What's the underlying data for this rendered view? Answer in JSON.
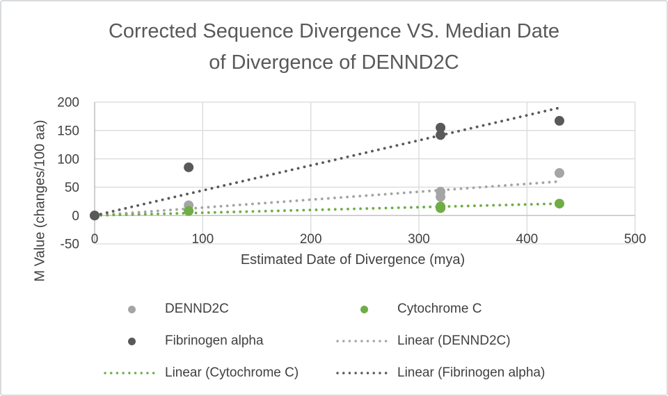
{
  "header": {
    "title_lines": [
      "Corrected Sequence Divergence VS. Median Date",
      "of Divergence of DENND2C"
    ]
  },
  "chart_data": {
    "type": "scatter",
    "title": "Corrected Sequence Divergence VS. Median Date of Divergence of DENND2C",
    "xlabel": "Estimated Date of Divergence (mya)",
    "ylabel": "M Value (changes/100 aa)",
    "xlim": [
      0,
      500
    ],
    "ylim": [
      -50,
      200
    ],
    "x_ticks": [
      0,
      100,
      200,
      300,
      400,
      500
    ],
    "y_ticks": [
      -50,
      0,
      50,
      100,
      150,
      200
    ],
    "grid": true,
    "legend_position": "bottom",
    "series": [
      {
        "name": "DENND2C",
        "marker": "circle",
        "color": "#a5a5a5",
        "points": [
          [
            0,
            0
          ],
          [
            87,
            18
          ],
          [
            320,
            33
          ],
          [
            320,
            42
          ],
          [
            430,
            75
          ]
        ]
      },
      {
        "name": "Cytochrome C",
        "marker": "circle",
        "color": "#70ad47",
        "points": [
          [
            0,
            0
          ],
          [
            87,
            8
          ],
          [
            320,
            13
          ],
          [
            320,
            16
          ],
          [
            430,
            21
          ]
        ]
      },
      {
        "name": "Fibrinogen alpha",
        "marker": "circle",
        "color": "#595959",
        "points": [
          [
            0,
            0
          ],
          [
            87,
            85
          ],
          [
            320,
            142
          ],
          [
            320,
            155
          ],
          [
            430,
            167
          ]
        ]
      }
    ],
    "trendlines": [
      {
        "name": "Linear (DENND2C)",
        "color": "#a5a5a5",
        "start": [
          0,
          0
        ],
        "end": [
          430,
          60
        ]
      },
      {
        "name": "Linear (Cytochrome C)",
        "color": "#70ad47",
        "start": [
          0,
          0
        ],
        "end": [
          430,
          21
        ]
      },
      {
        "name": "Linear (Fibrinogen alpha)",
        "color": "#595959",
        "start": [
          0,
          0
        ],
        "end": [
          430,
          190
        ]
      }
    ],
    "legend_entries": [
      {
        "label": "DENND2C",
        "swatch": "dot",
        "color": "#a5a5a5"
      },
      {
        "label": "Cytochrome C",
        "swatch": "dot",
        "color": "#70ad47"
      },
      {
        "label": "Fibrinogen alpha",
        "swatch": "dot",
        "color": "#595959"
      },
      {
        "label": "Linear (DENND2C)",
        "swatch": "line",
        "color": "#a5a5a5"
      },
      {
        "label": "Linear (Cytochrome C)",
        "swatch": "line",
        "color": "#70ad47"
      },
      {
        "label": "Linear (Fibrinogen alpha)",
        "swatch": "line",
        "color": "#595959"
      }
    ],
    "colors": {
      "gridline": "#d9d9d9",
      "axis_line": "#bfbfbf",
      "tick_text": "#404040",
      "title_text": "#595959"
    }
  }
}
